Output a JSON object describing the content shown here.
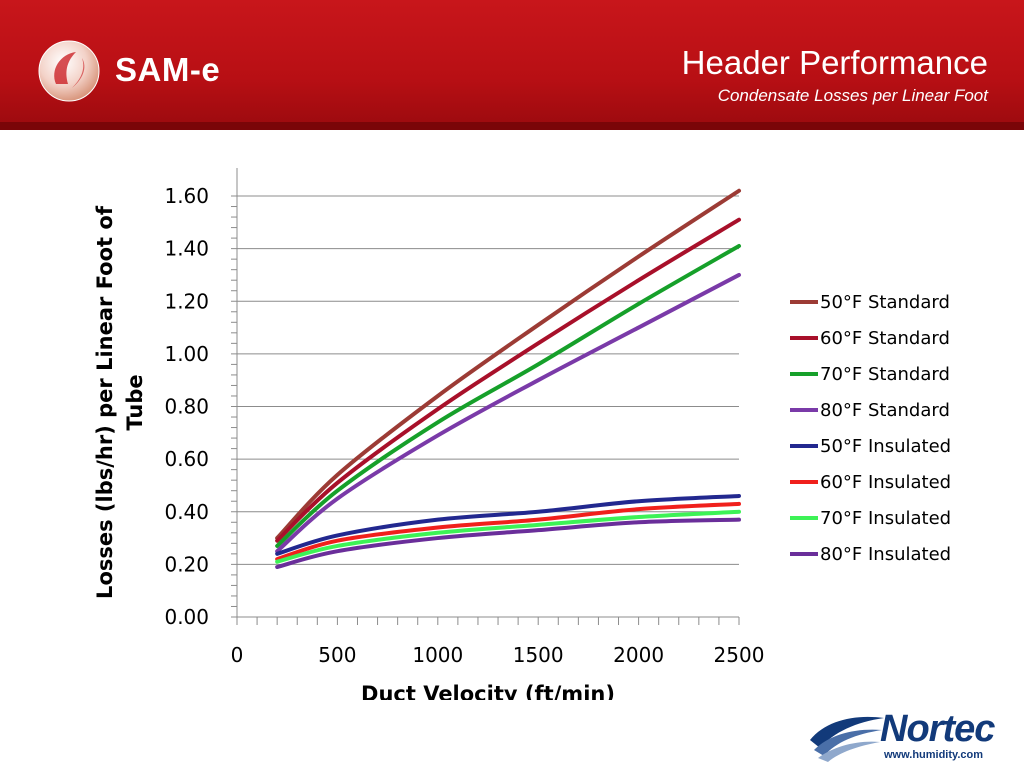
{
  "header": {
    "brand": "SAM-e",
    "title": "Header Performance",
    "subtitle": "Condensate Losses per Linear Foot",
    "accent_color": "#c8161b"
  },
  "footer": {
    "logo_text": "Nortec",
    "url": "www.humidity.com",
    "logo_color": "#123a7a"
  },
  "chart_data": {
    "type": "line",
    "xlabel": "Duct Velocity (ft/min)",
    "ylabel": "Losses (lbs/hr) per Linear Foot of Tube",
    "xlim": [
      0,
      2500
    ],
    "ylim": [
      0,
      1.6
    ],
    "x_ticks": [
      "0",
      "500",
      "1000",
      "1500",
      "2000",
      "2500"
    ],
    "y_ticks": [
      "0.00",
      "0.20",
      "0.40",
      "0.60",
      "0.80",
      "1.00",
      "1.20",
      "1.40",
      "1.60"
    ],
    "grid": "horizontal",
    "legend_position": "right",
    "x": [
      200,
      500,
      1000,
      1500,
      2000,
      2500
    ],
    "series": [
      {
        "name": "50°F Standard",
        "color": "#9c3b35",
        "values": [
          0.3,
          0.54,
          0.84,
          1.11,
          1.37,
          1.62
        ]
      },
      {
        "name": "60°F Standard",
        "color": "#a8102a",
        "values": [
          0.29,
          0.51,
          0.79,
          1.04,
          1.28,
          1.51
        ]
      },
      {
        "name": "70°F Standard",
        "color": "#16a02a",
        "values": [
          0.27,
          0.48,
          0.74,
          0.96,
          1.19,
          1.41
        ]
      },
      {
        "name": "80°F Standard",
        "color": "#7a3aa8",
        "values": [
          0.25,
          0.45,
          0.69,
          0.9,
          1.1,
          1.3
        ]
      },
      {
        "name": "50°F Insulated",
        "color": "#22288f",
        "values": [
          0.24,
          0.31,
          0.37,
          0.4,
          0.44,
          0.46
        ]
      },
      {
        "name": "60°F Insulated",
        "color": "#f0201c",
        "values": [
          0.22,
          0.29,
          0.34,
          0.37,
          0.41,
          0.43
        ]
      },
      {
        "name": "70°F Insulated",
        "color": "#3df256",
        "values": [
          0.21,
          0.27,
          0.32,
          0.35,
          0.38,
          0.4
        ]
      },
      {
        "name": "80°F Insulated",
        "color": "#6a2e9a",
        "values": [
          0.19,
          0.25,
          0.3,
          0.33,
          0.36,
          0.37
        ]
      }
    ]
  }
}
